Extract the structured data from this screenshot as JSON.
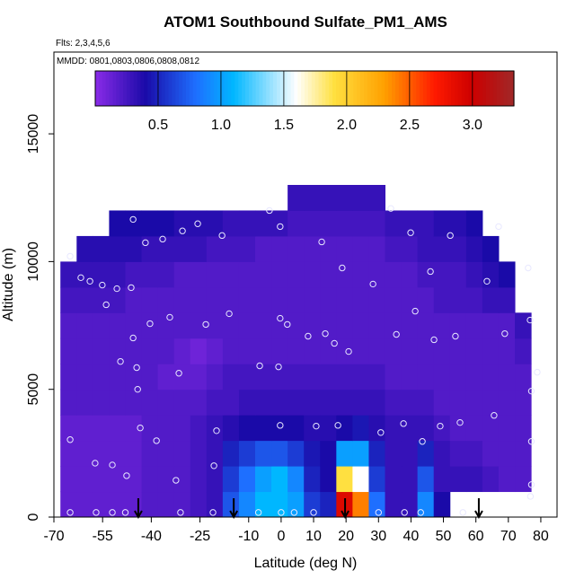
{
  "chart_data": {
    "type": "heatmap",
    "title": "ATOM1 Southbound Sulfate_PM1_AMS",
    "subtitle": "Flts: 2,3,4,5,6",
    "annotation": "MMDD: 0801,0803,0806,0808,0812",
    "xlabel": "Latitude (deg N)",
    "ylabel": "Altitude (m)",
    "xlim": [
      -70,
      85
    ],
    "ylim": [
      0,
      18200
    ],
    "xticks": [
      -70,
      -55,
      -40,
      -25,
      -10,
      0,
      10,
      20,
      30,
      40,
      50,
      60,
      70,
      80
    ],
    "yticks": [
      0,
      5000,
      10000,
      15000
    ],
    "clim": [
      0,
      3.33
    ],
    "cticks": [
      0.5,
      {
        "value": 1.0,
        "label": "1.0"
      },
      1.5,
      {
        "value": 2.0,
        "label": "2.0"
      },
      2.5,
      {
        "value": 3.0,
        "label": "3.0"
      }
    ],
    "colorscale": [
      {
        "value": 0,
        "color": "#8a2be8"
      },
      {
        "value": 0.4,
        "color": "#1a0aa8"
      },
      {
        "value": 0.8,
        "color": "#1e6fff"
      },
      {
        "value": 1.1,
        "color": "#00b7ff"
      },
      {
        "value": 1.6,
        "color": "#ffffff"
      },
      {
        "value": 1.9,
        "color": "#ffe040"
      },
      {
        "value": 2.3,
        "color": "#ffa000"
      },
      {
        "value": 2.7,
        "color": "#ff1a00"
      },
      {
        "value": 3.0,
        "color": "#cc0000"
      },
      {
        "value": 3.33,
        "color": "#a02828"
      }
    ],
    "x_edges": [
      -68,
      -63,
      -58,
      -53,
      -48,
      -43,
      -38,
      -33,
      -28,
      -23,
      -18,
      -13,
      -8,
      -3,
      2,
      7,
      12,
      17,
      22,
      27,
      32,
      37,
      42,
      47,
      52,
      57,
      62,
      67,
      72,
      77
    ],
    "y_edges": [
      0,
      1000,
      2000,
      3000,
      4000,
      5000,
      6000,
      7000,
      8000,
      9000,
      10000,
      11000,
      12000,
      13000
    ],
    "z": [
      [
        0.15,
        0.15,
        0.15,
        0.15,
        0.15,
        0.2,
        0.2,
        0.2,
        0.25,
        0.3,
        0.7,
        0.9,
        1.1,
        1.1,
        1.0,
        0.6,
        0.5,
        2.9,
        2.4,
        0.8,
        0.3,
        0.3,
        0.9,
        0.4,
        null,
        null,
        null,
        null,
        null
      ],
      [
        0.15,
        0.15,
        0.15,
        0.15,
        0.15,
        0.2,
        0.2,
        0.2,
        0.25,
        0.3,
        0.6,
        0.8,
        1.0,
        1.1,
        0.9,
        0.5,
        0.4,
        1.9,
        1.6,
        0.6,
        0.3,
        0.3,
        0.7,
        0.3,
        0.3,
        0.3,
        0.25,
        0.2,
        0.2
      ],
      [
        0.15,
        0.15,
        0.15,
        0.15,
        0.15,
        0.2,
        0.2,
        0.2,
        0.25,
        0.3,
        0.5,
        0.6,
        0.7,
        0.7,
        0.6,
        0.45,
        0.4,
        1.0,
        1.0,
        0.5,
        0.3,
        0.3,
        0.5,
        0.3,
        0.25,
        0.25,
        0.2,
        0.2,
        0.2
      ],
      [
        0.15,
        0.15,
        0.15,
        0.15,
        0.15,
        0.2,
        0.2,
        0.2,
        0.25,
        0.3,
        0.35,
        0.4,
        0.4,
        0.4,
        0.4,
        0.35,
        0.35,
        0.4,
        0.45,
        0.35,
        0.3,
        0.3,
        0.3,
        0.25,
        0.2,
        0.2,
        0.2,
        0.2,
        0.2
      ],
      [
        0.2,
        0.2,
        0.2,
        0.2,
        0.2,
        0.2,
        0.2,
        0.2,
        0.2,
        0.25,
        0.25,
        0.3,
        0.3,
        0.3,
        0.3,
        0.3,
        0.3,
        0.3,
        0.3,
        0.3,
        0.25,
        0.25,
        0.25,
        0.2,
        0.2,
        0.2,
        0.2,
        0.2,
        0.2
      ],
      [
        0.2,
        0.2,
        0.2,
        0.2,
        0.2,
        0.2,
        0.15,
        0.15,
        0.15,
        0.2,
        0.25,
        0.25,
        0.25,
        0.25,
        0.25,
        0.25,
        0.25,
        0.25,
        0.25,
        0.25,
        0.2,
        0.2,
        0.2,
        0.2,
        0.2,
        0.2,
        0.2,
        0.2,
        0.2
      ],
      [
        0.2,
        0.2,
        0.2,
        0.2,
        0.2,
        0.2,
        0.2,
        0.15,
        0.1,
        0.15,
        0.2,
        0.2,
        0.2,
        0.2,
        0.2,
        0.2,
        0.2,
        0.2,
        0.2,
        0.2,
        0.2,
        0.2,
        0.2,
        0.2,
        0.2,
        0.2,
        0.2,
        0.2,
        0.25
      ],
      [
        0.2,
        0.2,
        0.2,
        0.2,
        0.2,
        0.2,
        0.2,
        0.2,
        0.2,
        0.2,
        0.2,
        0.2,
        0.2,
        0.2,
        0.2,
        0.2,
        0.2,
        0.2,
        0.2,
        0.2,
        0.2,
        0.2,
        0.2,
        0.2,
        0.2,
        0.2,
        0.2,
        0.2,
        0.3
      ],
      [
        0.25,
        0.25,
        0.25,
        0.25,
        0.2,
        0.2,
        0.2,
        0.2,
        0.2,
        0.2,
        0.2,
        0.2,
        0.2,
        0.2,
        0.2,
        0.2,
        0.2,
        0.2,
        0.2,
        0.2,
        0.2,
        0.2,
        0.2,
        0.25,
        0.25,
        0.25,
        0.3,
        0.3,
        null
      ],
      [
        0.3,
        0.3,
        0.3,
        0.3,
        0.25,
        0.25,
        0.25,
        0.2,
        0.2,
        0.2,
        0.2,
        0.2,
        0.2,
        0.2,
        0.2,
        0.2,
        0.2,
        0.2,
        0.2,
        0.2,
        0.2,
        0.2,
        0.25,
        0.25,
        0.25,
        0.3,
        0.35,
        0.4,
        null
      ],
      [
        null,
        0.35,
        0.35,
        0.35,
        0.35,
        0.3,
        0.3,
        0.3,
        0.3,
        0.25,
        0.25,
        0.25,
        0.2,
        0.2,
        0.2,
        0.2,
        0.2,
        0.2,
        0.2,
        0.2,
        0.25,
        0.25,
        0.3,
        0.3,
        0.3,
        0.35,
        0.4,
        null,
        null
      ],
      [
        null,
        null,
        null,
        0.4,
        0.4,
        0.4,
        0.4,
        0.35,
        0.35,
        0.35,
        0.3,
        0.3,
        0.3,
        0.3,
        0.25,
        0.25,
        0.25,
        0.25,
        0.25,
        0.25,
        0.3,
        0.3,
        0.3,
        0.35,
        0.35,
        0.4,
        null,
        null,
        null
      ],
      [
        null,
        null,
        null,
        null,
        null,
        null,
        null,
        null,
        null,
        null,
        null,
        null,
        null,
        null,
        0.3,
        0.3,
        0.3,
        0.3,
        0.3,
        0.3,
        null,
        null,
        null,
        null,
        null,
        null,
        null,
        null,
        null
      ]
    ],
    "points": {
      "color": "#e8e8ff",
      "x": [
        -45.6,
        -41.8,
        -36.5,
        -30.4,
        -25.7,
        -18.2,
        -3.6,
        -0.3,
        33.8,
        39.9,
        52.1,
        67.0,
        -65.0,
        -61.7,
        -58.9,
        -55.1,
        -50.6,
        -46.2,
        -53.9,
        -40.4,
        -34.3,
        -23.2,
        -16.0,
        -0.3,
        1.9,
        12.5,
        18.8,
        28.3,
        41.3,
        46.0,
        63.4,
        76.1,
        76.7,
        68.9,
        53.7,
        47.1,
        35.5,
        20.8,
        16.4,
        13.6,
        8.3,
        -45.6,
        -49.5,
        -44.5,
        -44.2,
        -31.5,
        -6.6,
        -0.8,
        78.9,
        77.1,
        65.6,
        55.1,
        49.0,
        37.7,
        30.7,
        17.5,
        10.8,
        -0.3,
        -19.9,
        -43.4,
        -65.0,
        -38.4,
        43.5,
        77.1,
        -57.3,
        -52.0,
        -47.6,
        -32.4,
        -20.7,
        77.1,
        76.8,
        -65,
        -57,
        -52,
        -48,
        -31,
        -21,
        -7,
        0,
        4,
        10,
        30,
        38,
        43,
        56
      ],
      "y": [
        11650,
        10740,
        10880,
        11200,
        11480,
        11020,
        12000,
        11370,
        12080,
        11130,
        11020,
        11370,
        10210,
        9370,
        9230,
        9080,
        8940,
        8980,
        8310,
        7570,
        7820,
        7540,
        7960,
        7780,
        7540,
        10770,
        9750,
        9120,
        8060,
        9610,
        9230,
        9750,
        7710,
        7180,
        7080,
        6940,
        7150,
        6480,
        6800,
        7180,
        7080,
        7010,
        6090,
        5850,
        5000,
        5630,
        5920,
        5880,
        5670,
        4930,
        3980,
        3700,
        3560,
        3660,
        3310,
        3590,
        3560,
        3590,
        3380,
        3490,
        3030,
        2990,
        2960,
        2960,
        2110,
        2040,
        1620,
        1440,
        2010,
        1270,
        810,
        180,
        180,
        180,
        180,
        180,
        180,
        180,
        180,
        180,
        180,
        180,
        180,
        180,
        180
      ]
    },
    "arrows": [
      -44.0,
      -14.6,
      19.7,
      60.9
    ]
  }
}
